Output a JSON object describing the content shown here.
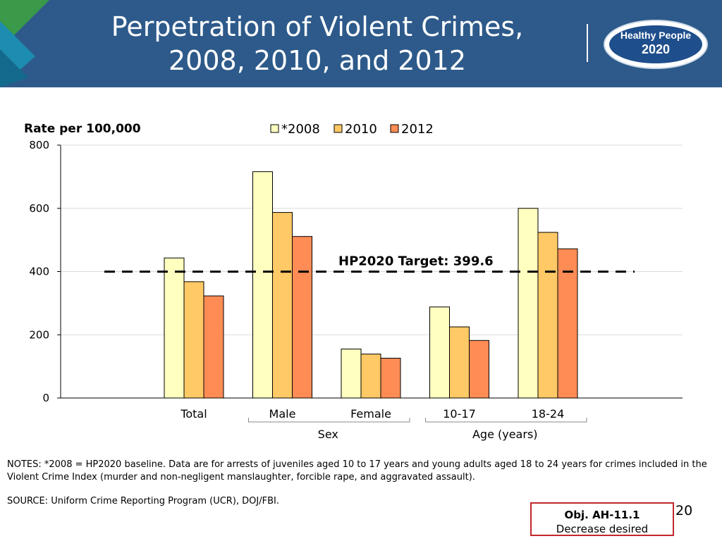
{
  "header": {
    "title_line1": "Perpetration of Violent Crimes,",
    "title_line2": "2008, 2010, and 2012",
    "logo_line1": "Healthy People",
    "logo_line2": "2020",
    "background_color": "#2d5a8a"
  },
  "chart_data": {
    "type": "bar",
    "ylabel": "Rate per 100,000",
    "ylim": [
      0,
      800
    ],
    "yticks": [
      0,
      200,
      400,
      600,
      800
    ],
    "grid": true,
    "legend_position": "top-center",
    "categories": [
      "Total",
      "Male",
      "Female",
      "10-17",
      "18-24"
    ],
    "groups": [
      {
        "label": "Sex",
        "categories": [
          "Male",
          "Female"
        ]
      },
      {
        "label": "Age (years)",
        "categories": [
          "10-17",
          "18-24"
        ]
      }
    ],
    "series": [
      {
        "name": "*2008",
        "color": "#ffffc0",
        "values": [
          443,
          716,
          155,
          288,
          600
        ]
      },
      {
        "name": "2010",
        "color": "#ffc966",
        "values": [
          368,
          587,
          139,
          225,
          524
        ]
      },
      {
        "name": "2012",
        "color": "#ff8c55",
        "values": [
          323,
          511,
          126,
          182,
          472
        ]
      }
    ],
    "target": {
      "value": 399.6,
      "label": "HP2020 Target: 399.6",
      "style": "dashed"
    }
  },
  "footer": {
    "notes": "NOTES: *2008 = HP2020 baseline. Data are for arrests of juveniles aged 10 to 17 years and young adults aged 18 to 24 years for crimes included in the Violent Crime Index (murder and non-negligent manslaughter, forcible rape, and aggravated assault).",
    "source": "SOURCE: Uniform Crime Reporting Program (UCR), DOJ/FBI.",
    "objective_code": "Obj. AH-11.1",
    "objective_desc": "Decrease desired",
    "page_number": "20"
  }
}
